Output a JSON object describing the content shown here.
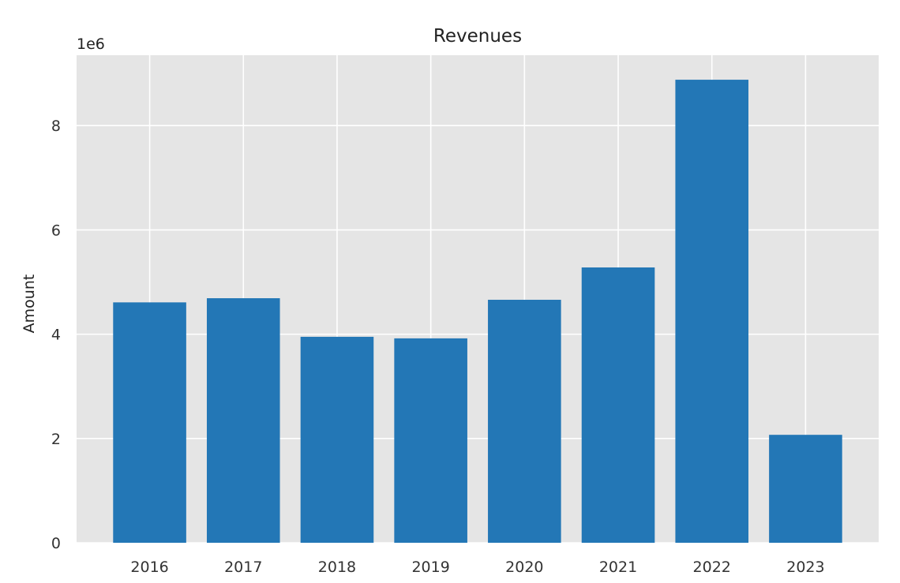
{
  "chart_data": {
    "type": "bar",
    "title": "Revenues",
    "xlabel": "",
    "ylabel": "Amount",
    "y_offset_label": "1e6",
    "categories": [
      "2016",
      "2017",
      "2018",
      "2019",
      "2020",
      "2021",
      "2022",
      "2023"
    ],
    "values": [
      4610000,
      4690000,
      3950000,
      3920000,
      4660000,
      5280000,
      8880000,
      2070000
    ],
    "ylim": [
      0,
      9350000
    ],
    "yticks": [
      0,
      2,
      4,
      6,
      8
    ],
    "ytick_labels": [
      "0",
      "2",
      "4",
      "6",
      "8"
    ],
    "grid": true,
    "legend": "none",
    "colors": {
      "bar": "#2377b6",
      "axes_background": "#e5e5e5",
      "grid": "#ffffff"
    }
  }
}
